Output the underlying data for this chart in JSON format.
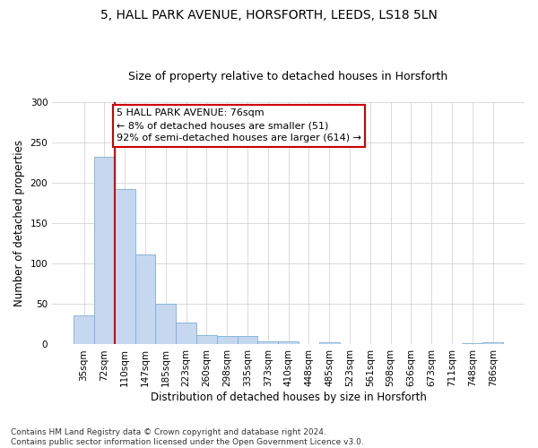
{
  "title_line1": "5, HALL PARK AVENUE, HORSFORTH, LEEDS, LS18 5LN",
  "title_line2": "Size of property relative to detached houses in Horsforth",
  "xlabel": "Distribution of detached houses by size in Horsforth",
  "ylabel": "Number of detached properties",
  "footnote": "Contains HM Land Registry data © Crown copyright and database right 2024.\nContains public sector information licensed under the Open Government Licence v3.0.",
  "bar_labels": [
    "35sqm",
    "72sqm",
    "110sqm",
    "147sqm",
    "185sqm",
    "223sqm",
    "260sqm",
    "298sqm",
    "335sqm",
    "373sqm",
    "410sqm",
    "448sqm",
    "485sqm",
    "523sqm",
    "561sqm",
    "598sqm",
    "636sqm",
    "673sqm",
    "711sqm",
    "748sqm",
    "786sqm"
  ],
  "bar_values": [
    36,
    232,
    192,
    111,
    50,
    27,
    12,
    11,
    10,
    4,
    4,
    0,
    3,
    0,
    0,
    0,
    0,
    0,
    0,
    2,
    3
  ],
  "bar_color": "#c5d8f0",
  "bar_edge_color": "#7bafd4",
  "vline_color": "#cc0000",
  "vline_pos": 1.5,
  "annotation_text": "5 HALL PARK AVENUE: 76sqm\n← 8% of detached houses are smaller (51)\n92% of semi-detached houses are larger (614) →",
  "annotation_box_color": "#ffffff",
  "annotation_box_edge": "#cc0000",
  "ylim": [
    0,
    300
  ],
  "yticks": [
    0,
    50,
    100,
    150,
    200,
    250,
    300
  ],
  "background_color": "#ffffff",
  "grid_color": "#cccccc",
  "title_fontsize": 10,
  "subtitle_fontsize": 9,
  "tick_fontsize": 7.5,
  "ylabel_fontsize": 8.5,
  "xlabel_fontsize": 8.5,
  "annotation_fontsize": 8,
  "footnote_fontsize": 6.5
}
